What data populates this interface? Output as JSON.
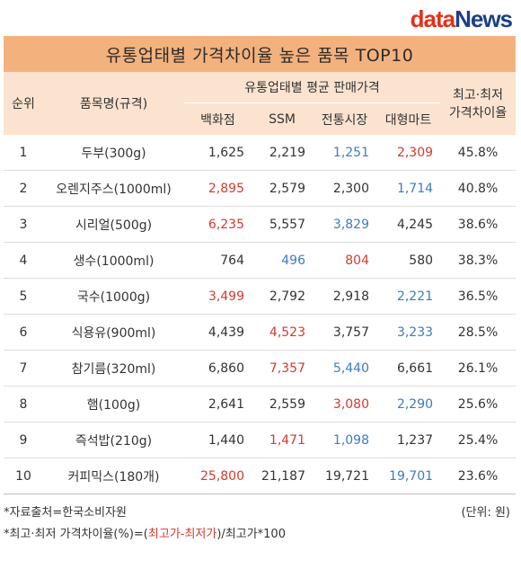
{
  "logo": {
    "part1": "data",
    "part2": "News"
  },
  "title": "유통업태별 가격차이율 높은 품목 TOP10",
  "headers": {
    "rank": "순위",
    "item": "품목명(규격)",
    "group": "유통업태별 평균 판매가격",
    "ratio_line1": "최고·최저",
    "ratio_line2": "가격차이율",
    "channels": [
      "백화점",
      "SSM",
      "전통시장",
      "대형마트"
    ]
  },
  "colors": {
    "max": "#d23b2e",
    "min": "#3a7cc0",
    "title_bg": "#f3b27d",
    "header_bg": "#fbe3cf"
  },
  "rows": [
    {
      "rank": "1",
      "item": "두부(300g)",
      "prices": [
        "1,625",
        "2,219",
        "1,251",
        "2,309"
      ],
      "ratio": "45.8%",
      "max_idx": 3,
      "min_idx": 2
    },
    {
      "rank": "2",
      "item": "오렌지주스(1000ml)",
      "prices": [
        "2,895",
        "2,579",
        "2,300",
        "1,714"
      ],
      "ratio": "40.8%",
      "max_idx": 0,
      "min_idx": 3
    },
    {
      "rank": "3",
      "item": "시리얼(500g)",
      "prices": [
        "6,235",
        "5,557",
        "3,829",
        "4,245"
      ],
      "ratio": "38.6%",
      "max_idx": 0,
      "min_idx": 2
    },
    {
      "rank": "4",
      "item": "생수(1000ml)",
      "prices": [
        "764",
        "496",
        "804",
        "580"
      ],
      "ratio": "38.3%",
      "max_idx": 2,
      "min_idx": 1
    },
    {
      "rank": "5",
      "item": "국수(1000g)",
      "prices": [
        "3,499",
        "2,792",
        "2,918",
        "2,221"
      ],
      "ratio": "36.5%",
      "max_idx": 0,
      "min_idx": 3
    },
    {
      "rank": "6",
      "item": "식용유(900ml)",
      "prices": [
        "4,439",
        "4,523",
        "3,757",
        "3,233"
      ],
      "ratio": "28.5%",
      "max_idx": 1,
      "min_idx": 3
    },
    {
      "rank": "7",
      "item": "참기름(320ml)",
      "prices": [
        "6,860",
        "7,357",
        "5,440",
        "6,661"
      ],
      "ratio": "26.1%",
      "max_idx": 1,
      "min_idx": 2
    },
    {
      "rank": "8",
      "item": "햄(100g)",
      "prices": [
        "2,641",
        "2,559",
        "3,080",
        "2,290"
      ],
      "ratio": "25.6%",
      "max_idx": 2,
      "min_idx": 3
    },
    {
      "rank": "9",
      "item": "즉석밥(210g)",
      "prices": [
        "1,440",
        "1,471",
        "1,098",
        "1,237"
      ],
      "ratio": "25.4%",
      "max_idx": 1,
      "min_idx": 2
    },
    {
      "rank": "10",
      "item": "커피믹스(180개)",
      "prices": [
        "25,800",
        "21,187",
        "19,721",
        "19,701"
      ],
      "ratio": "23.6%",
      "max_idx": 0,
      "min_idx": 3
    }
  ],
  "footer": {
    "source": "*자료출처=한국소비자원",
    "unit": "(단위: 원)",
    "formula_prefix": "*최고·최저 가격차이율(%)=(",
    "formula_highlight": "최고가-최저가",
    "formula_suffix": ")/최고가*100"
  }
}
